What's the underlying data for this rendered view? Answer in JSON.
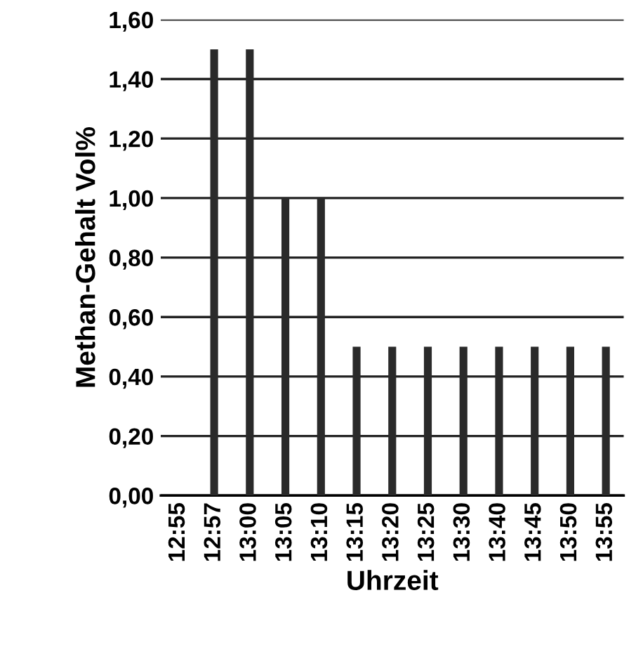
{
  "chart_data": {
    "type": "bar",
    "xlabel": "Uhrzeit",
    "ylabel": "Methan-Gehalt Vol%",
    "categories": [
      "12:55",
      "12:57",
      "13:00",
      "13:05",
      "13:10",
      "13:15",
      "13:20",
      "13:25",
      "13:30",
      "13:40",
      "13:45",
      "13:50",
      "13:55"
    ],
    "values": [
      0,
      1.5,
      1.5,
      1.0,
      1.0,
      0.5,
      0.5,
      0.5,
      0.5,
      0.5,
      0.5,
      0.5,
      0.5
    ],
    "color": "#2a2a2a",
    "ylim": [
      0,
      1.6
    ],
    "yticks": [
      {
        "value": 0,
        "label": "0,00"
      },
      {
        "value": 0.2,
        "label": "0,20"
      },
      {
        "value": 0.4,
        "label": "0,40"
      },
      {
        "value": 0.6,
        "label": "0,60"
      },
      {
        "value": 0.8,
        "label": "0,80"
      },
      {
        "value": 1.0,
        "label": "1,00"
      },
      {
        "value": 1.2,
        "label": "1,20"
      },
      {
        "value": 1.4,
        "label": "1,40"
      },
      {
        "value": 1.6,
        "label": "1,60"
      }
    ],
    "grid": "y"
  }
}
